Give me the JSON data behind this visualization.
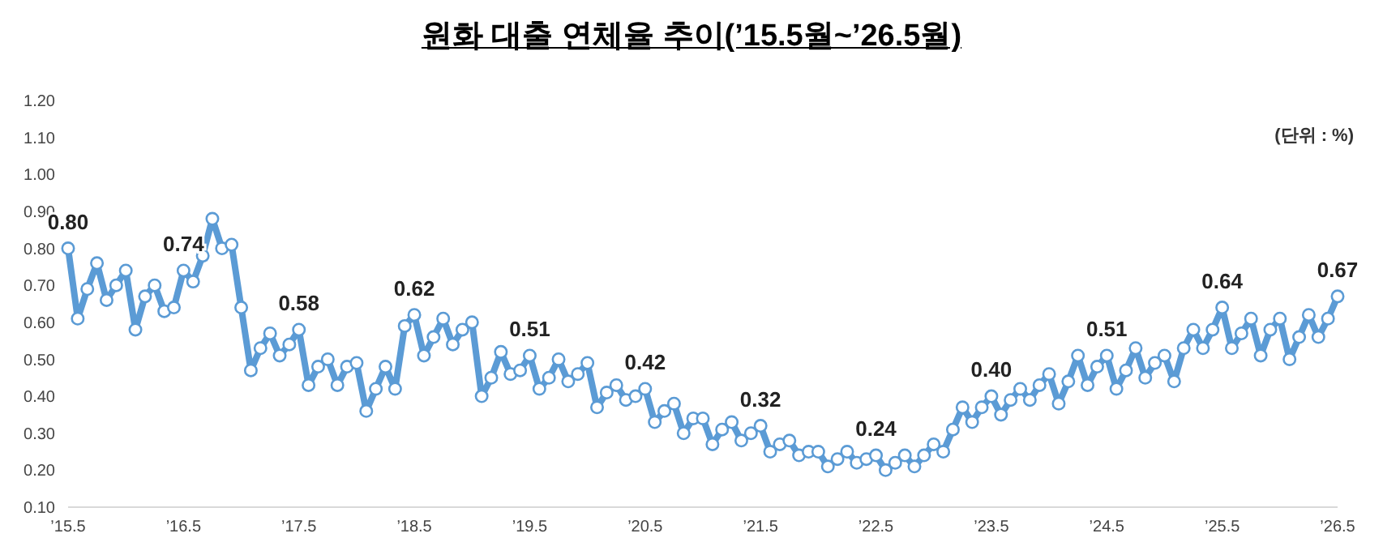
{
  "chart_data": {
    "type": "line",
    "title": "원화 대출 연체율 추이(’15.5월~’26.5월)",
    "annotations": [
      "(단위 : %)"
    ],
    "marker": "circle",
    "line_style": "solid",
    "categories": [
      "’15.5",
      null,
      null,
      null,
      null,
      null,
      null,
      null,
      null,
      null,
      null,
      null,
      "’16.5",
      null,
      null,
      null,
      null,
      null,
      null,
      null,
      null,
      null,
      null,
      null,
      "’17.5",
      null,
      null,
      null,
      null,
      null,
      null,
      null,
      null,
      null,
      null,
      null,
      "’18.5",
      null,
      null,
      null,
      null,
      null,
      null,
      null,
      null,
      null,
      null,
      null,
      "’19.5",
      null,
      null,
      null,
      null,
      null,
      null,
      null,
      null,
      null,
      null,
      null,
      "’20.5",
      null,
      null,
      null,
      null,
      null,
      null,
      null,
      null,
      null,
      null,
      null,
      "’21.5",
      null,
      null,
      null,
      null,
      null,
      null,
      null,
      null,
      null,
      null,
      null,
      "’22.5",
      null,
      null,
      null,
      null,
      null,
      null,
      null,
      null,
      null,
      null,
      null,
      "’23.5",
      null,
      null,
      null,
      null,
      null,
      null,
      null,
      null,
      null,
      null,
      null,
      "’24.5",
      null,
      null,
      null,
      null,
      null,
      null,
      null,
      null,
      null,
      null,
      null,
      "’25.5",
      null,
      null,
      null,
      null,
      null,
      null,
      null,
      null,
      null,
      null,
      null,
      "’26.5"
    ],
    "series": [
      {
        "color": "#5b9bd5",
        "values": [
          0.8,
          0.61,
          0.69,
          0.76,
          0.66,
          0.7,
          0.74,
          0.58,
          0.67,
          0.7,
          0.63,
          0.64,
          0.74,
          0.71,
          0.78,
          0.88,
          0.8,
          0.81,
          0.64,
          0.47,
          0.53,
          0.57,
          0.51,
          0.54,
          0.58,
          0.43,
          0.48,
          0.5,
          0.43,
          0.48,
          0.49,
          0.36,
          0.42,
          0.48,
          0.42,
          0.59,
          0.62,
          0.51,
          0.56,
          0.61,
          0.54,
          0.58,
          0.6,
          0.4,
          0.45,
          0.52,
          0.46,
          0.47,
          0.51,
          0.42,
          0.45,
          0.5,
          0.44,
          0.46,
          0.49,
          0.37,
          0.41,
          0.43,
          0.39,
          0.4,
          0.42,
          0.33,
          0.36,
          0.38,
          0.3,
          0.34,
          0.34,
          0.27,
          0.31,
          0.33,
          0.28,
          0.3,
          0.32,
          0.25,
          0.27,
          0.28,
          0.24,
          0.25,
          0.25,
          0.21,
          0.23,
          0.25,
          0.22,
          0.23,
          0.24,
          0.2,
          0.22,
          0.24,
          0.21,
          0.24,
          0.27,
          0.25,
          0.31,
          0.37,
          0.33,
          0.37,
          0.4,
          0.35,
          0.39,
          0.42,
          0.39,
          0.43,
          0.46,
          0.38,
          0.44,
          0.51,
          0.43,
          0.48,
          0.51,
          0.42,
          0.47,
          0.53,
          0.45,
          0.49,
          0.51,
          0.44,
          0.53,
          0.58,
          0.53,
          0.58,
          0.64,
          0.53,
          0.57,
          0.61,
          0.51,
          0.58,
          0.61,
          0.5,
          0.56,
          0.62,
          0.56,
          0.61,
          0.67
        ],
        "value_labels": [
          "0.80",
          null,
          null,
          null,
          null,
          null,
          null,
          null,
          null,
          null,
          null,
          null,
          "0.74",
          null,
          null,
          null,
          null,
          null,
          null,
          null,
          null,
          null,
          null,
          null,
          "0.58",
          null,
          null,
          null,
          null,
          null,
          null,
          null,
          null,
          null,
          null,
          null,
          "0.62",
          null,
          null,
          null,
          null,
          null,
          null,
          null,
          null,
          null,
          null,
          null,
          "0.51",
          null,
          null,
          null,
          null,
          null,
          null,
          null,
          null,
          null,
          null,
          null,
          "0.42",
          null,
          null,
          null,
          null,
          null,
          null,
          null,
          null,
          null,
          null,
          null,
          "0.32",
          null,
          null,
          null,
          null,
          null,
          null,
          null,
          null,
          null,
          null,
          null,
          "0.24",
          null,
          null,
          null,
          null,
          null,
          null,
          null,
          null,
          null,
          null,
          null,
          "0.40",
          null,
          null,
          null,
          null,
          null,
          null,
          null,
          null,
          null,
          null,
          null,
          "0.51",
          null,
          null,
          null,
          null,
          null,
          null,
          null,
          null,
          null,
          null,
          null,
          "0.64",
          null,
          null,
          null,
          null,
          null,
          null,
          null,
          null,
          null,
          null,
          null,
          "0.67"
        ]
      }
    ],
    "ylim": [
      0.1,
      1.2
    ],
    "yticks": [
      {
        "value": 0.1,
        "label": "0.10"
      },
      {
        "value": 0.2,
        "label": "0.20"
      },
      {
        "value": 0.3,
        "label": "0.30"
      },
      {
        "value": 0.4,
        "label": "0.40"
      },
      {
        "value": 0.5,
        "label": "0.50"
      },
      {
        "value": 0.6,
        "label": "0.60"
      },
      {
        "value": 0.7,
        "label": "0.70"
      },
      {
        "value": 0.8,
        "label": "0.80"
      },
      {
        "value": 0.9,
        "label": "0.90"
      },
      {
        "value": 1.0,
        "label": "1.00"
      },
      {
        "value": 1.1,
        "label": "1.10"
      },
      {
        "value": 1.2,
        "label": "1.20"
      }
    ]
  }
}
